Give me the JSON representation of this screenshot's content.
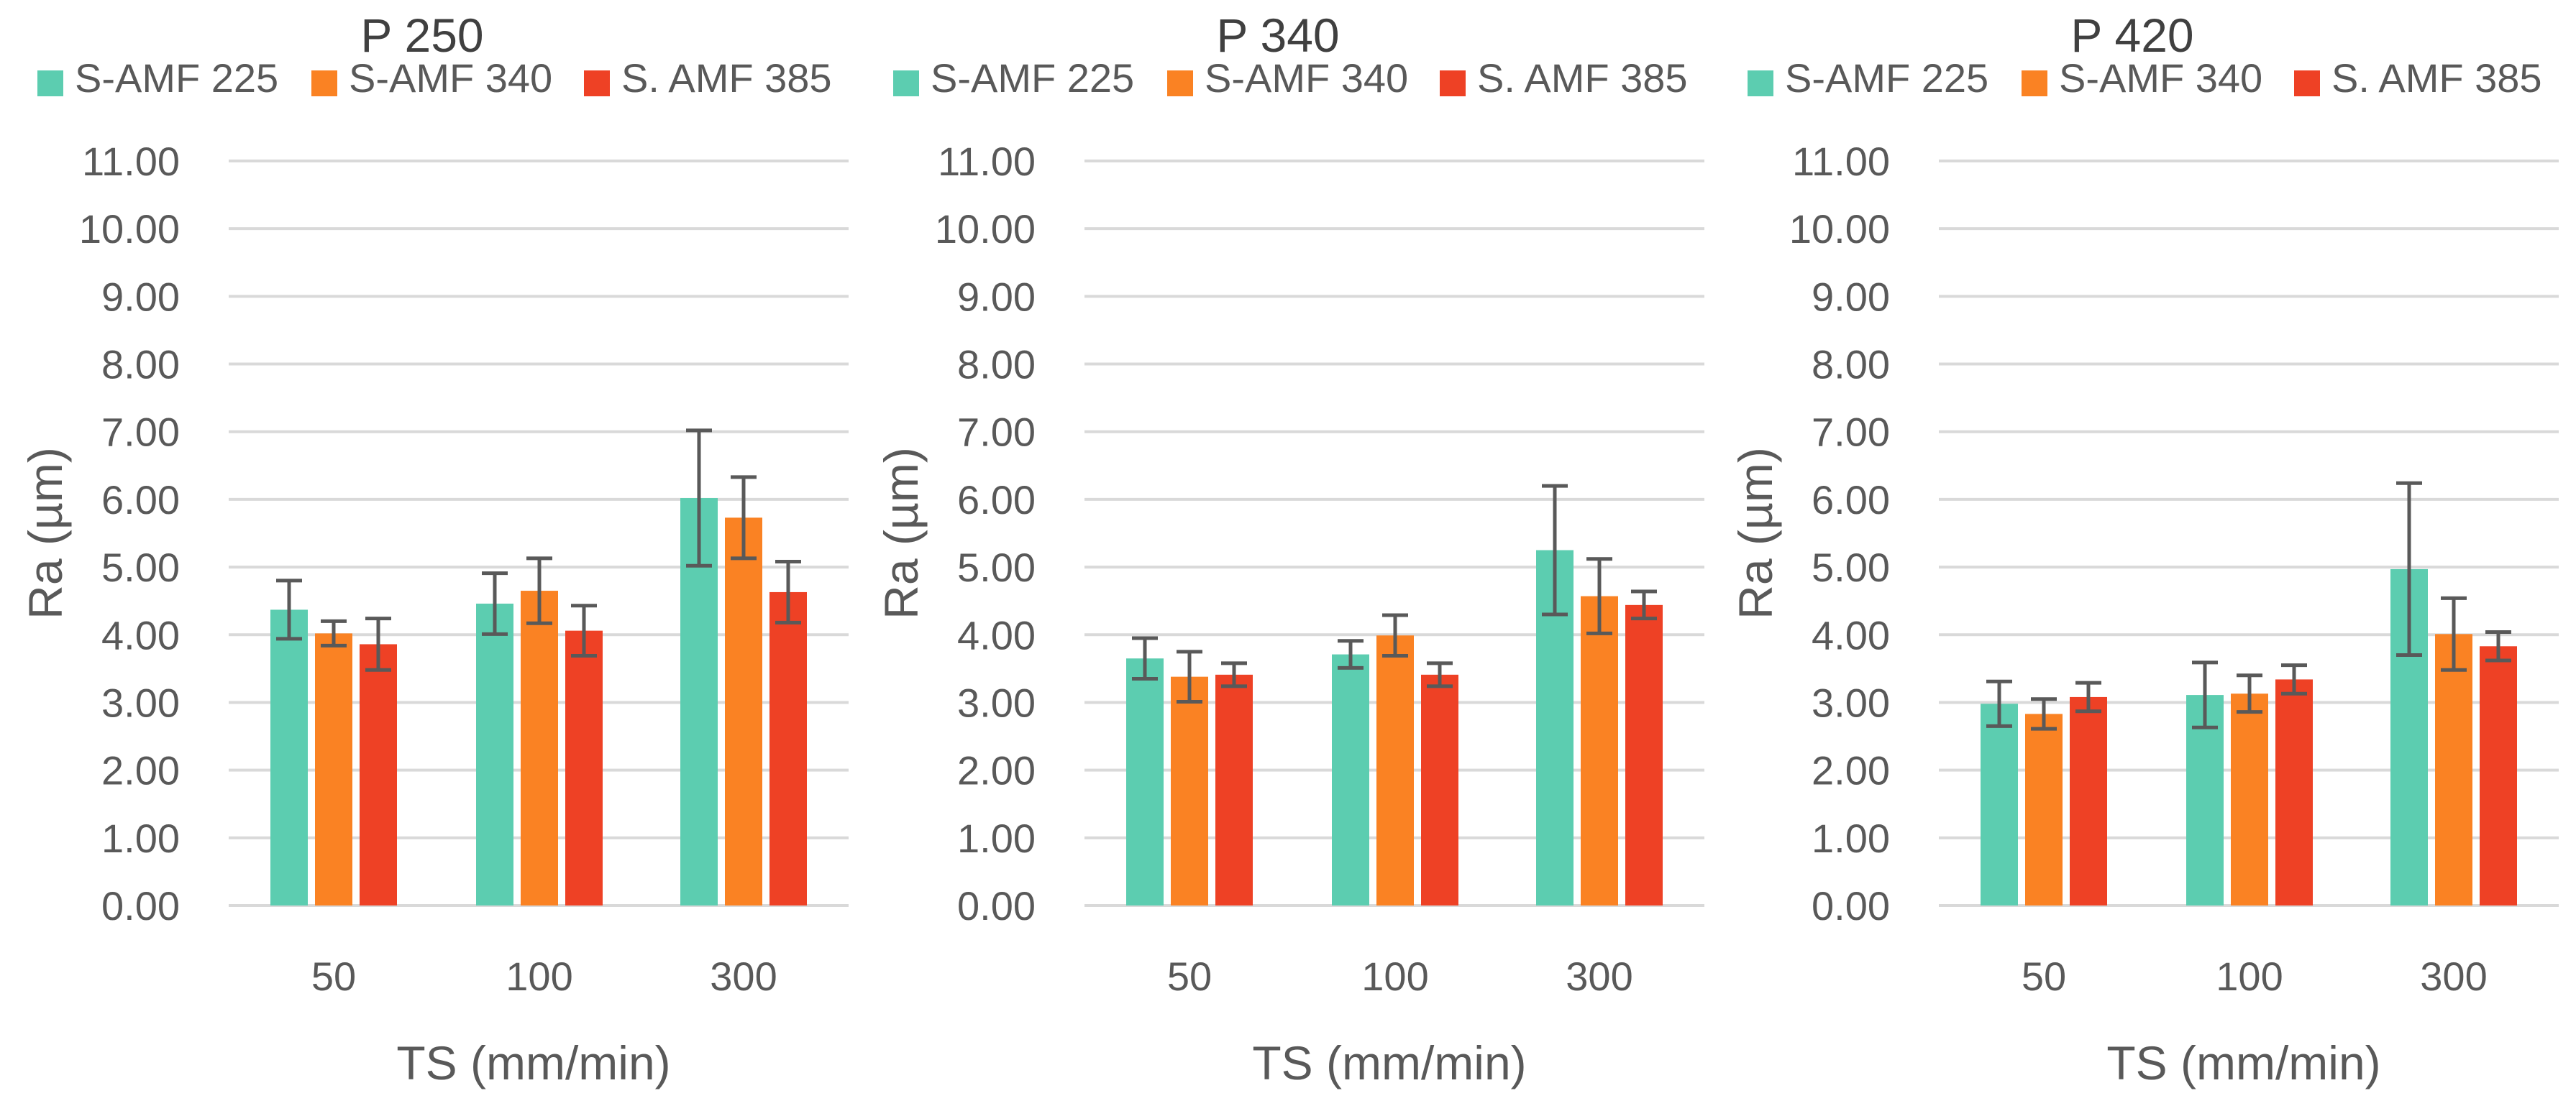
{
  "colors": {
    "S-AMF 225": "#5ccdb0",
    "S-AMF 340": "#fa8223",
    "S. AMF 385": "#ee4125"
  },
  "chart_data": [
    {
      "type": "bar",
      "title": "P 250",
      "xlabel": "TS (mm/min)",
      "ylabel": "Ra (µm)",
      "ylim": [
        0,
        11
      ],
      "yticks": [
        "0.00",
        "1.00",
        "2.00",
        "3.00",
        "4.00",
        "5.00",
        "6.00",
        "7.00",
        "8.00",
        "9.00",
        "10.00",
        "11.00"
      ],
      "categories": [
        "50",
        "100",
        "300"
      ],
      "legend_position": "top",
      "series": [
        {
          "name": "S-AMF 225",
          "values": [
            4.37,
            4.46,
            6.02
          ],
          "errors": [
            0.43,
            0.45,
            1.0
          ]
        },
        {
          "name": "S-AMF 340",
          "values": [
            4.02,
            4.65,
            5.73
          ],
          "errors": [
            0.18,
            0.48,
            0.6
          ]
        },
        {
          "name": "S. AMF 385",
          "values": [
            3.86,
            4.06,
            4.63
          ],
          "errors": [
            0.38,
            0.37,
            0.45
          ]
        }
      ]
    },
    {
      "type": "bar",
      "title": "P 340",
      "xlabel": "TS (mm/min)",
      "ylabel": "Ra (µm)",
      "ylim": [
        0,
        11
      ],
      "yticks": [
        "0.00",
        "1.00",
        "2.00",
        "3.00",
        "4.00",
        "5.00",
        "6.00",
        "7.00",
        "8.00",
        "9.00",
        "10.00",
        "11.00"
      ],
      "categories": [
        "50",
        "100",
        "300"
      ],
      "legend_position": "top",
      "series": [
        {
          "name": "S-AMF 225",
          "values": [
            3.65,
            3.71,
            5.25
          ],
          "errors": [
            0.3,
            0.2,
            0.95
          ]
        },
        {
          "name": "S-AMF 340",
          "values": [
            3.38,
            3.99,
            4.57
          ],
          "errors": [
            0.37,
            0.3,
            0.55
          ]
        },
        {
          "name": "S. AMF 385",
          "values": [
            3.41,
            3.41,
            4.44
          ],
          "errors": [
            0.17,
            0.17,
            0.2
          ]
        }
      ]
    },
    {
      "type": "bar",
      "title": "P 420",
      "xlabel": "TS (mm/min)",
      "ylabel": "Ra (µm)",
      "ylim": [
        0,
        11
      ],
      "yticks": [
        "0.00",
        "1.00",
        "2.00",
        "3.00",
        "4.00",
        "5.00",
        "6.00",
        "7.00",
        "8.00",
        "9.00",
        "10.00",
        "11.00"
      ],
      "categories": [
        "50",
        "100",
        "300"
      ],
      "legend_position": "top",
      "series": [
        {
          "name": "S-AMF 225",
          "values": [
            2.98,
            3.11,
            4.97
          ],
          "errors": [
            0.33,
            0.48,
            1.27
          ]
        },
        {
          "name": "S-AMF 340",
          "values": [
            2.83,
            3.13,
            4.01
          ],
          "errors": [
            0.22,
            0.27,
            0.53
          ]
        },
        {
          "name": "S. AMF 385",
          "values": [
            3.08,
            3.34,
            3.83
          ],
          "errors": [
            0.21,
            0.21,
            0.21
          ]
        }
      ]
    }
  ]
}
